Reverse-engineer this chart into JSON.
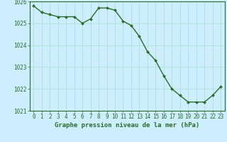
{
  "x": [
    0,
    1,
    2,
    3,
    4,
    5,
    6,
    7,
    8,
    9,
    10,
    11,
    12,
    13,
    14,
    15,
    16,
    17,
    18,
    19,
    20,
    21,
    22,
    23
  ],
  "y": [
    1025.8,
    1025.5,
    1025.4,
    1025.3,
    1025.3,
    1025.3,
    1025.0,
    1025.2,
    1025.7,
    1025.7,
    1025.6,
    1025.1,
    1024.9,
    1024.4,
    1023.7,
    1023.3,
    1022.6,
    1022.0,
    1021.7,
    1021.4,
    1021.4,
    1021.4,
    1021.7,
    1022.1
  ],
  "ylim": [
    1021.0,
    1026.0
  ],
  "yticks": [
    1021,
    1022,
    1023,
    1024,
    1025,
    1026
  ],
  "xticks": [
    0,
    1,
    2,
    3,
    4,
    5,
    6,
    7,
    8,
    9,
    10,
    11,
    12,
    13,
    14,
    15,
    16,
    17,
    18,
    19,
    20,
    21,
    22,
    23
  ],
  "xlabel": "Graphe pression niveau de la mer (hPa)",
  "line_color": "#2d6a2d",
  "marker_color": "#2d6a2d",
  "bg_color": "#cceeff",
  "grid_color": "#aaddcc",
  "axis_color": "#336633",
  "label_color": "#2d6a2d",
  "tick_fontsize": 5.5,
  "xlabel_fontsize": 6.5,
  "line_width": 1.0,
  "marker_size": 2.0
}
